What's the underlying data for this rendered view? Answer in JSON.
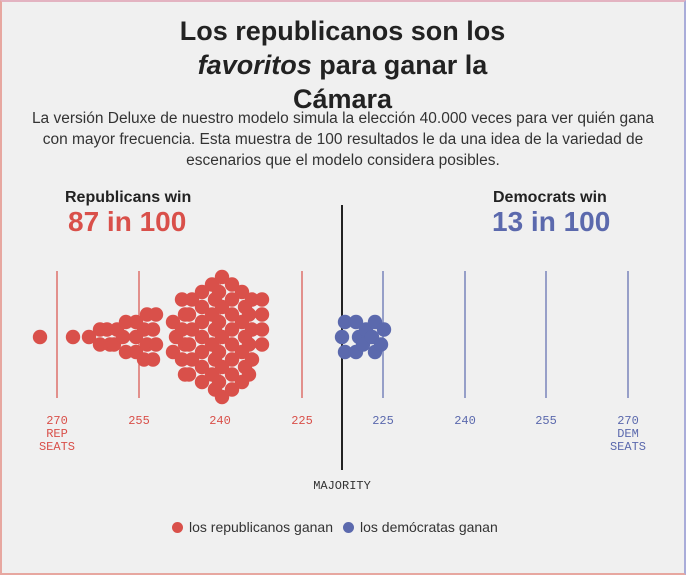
{
  "title": {
    "line1": "Los republicanos son los",
    "italic": "favoritos",
    "line2_rest": " para ganar la",
    "line3": "Cámara"
  },
  "subtitle": "La versión Deluxe de nuestro modelo simula la elección 40.000 veces para ver quién gana con mayor frecuencia. Esta muestra de 100 resultados le da una idea de la variedad de escenarios que el modelo considera posibles.",
  "republicans": {
    "label": "Republicans win",
    "value": "87 in 100",
    "color": "#d9504a"
  },
  "democrats": {
    "label": "Democrats win",
    "value": "13 in 100",
    "color": "#5b69ad"
  },
  "legend": {
    "rep": "los republicanos ganan",
    "dem": "los demócratas ganan"
  },
  "chart_data": {
    "type": "scatter",
    "description_axis": "Rep seats (left) to Dem seats (right)",
    "ticks": [
      {
        "label": "270",
        "sub": [
          "REP",
          "SEATS"
        ],
        "party": "rep"
      },
      {
        "label": "255",
        "party": "rep"
      },
      {
        "label": "240",
        "party": "rep"
      },
      {
        "label": "225",
        "party": "rep"
      },
      {
        "label": "225",
        "party": "dem"
      },
      {
        "label": "240",
        "party": "dem"
      },
      {
        "label": "255",
        "party": "dem"
      },
      {
        "label": "270",
        "sub": [
          "DEM",
          "SEATS"
        ],
        "party": "dem"
      }
    ],
    "majority_label": "MAJORITY",
    "rep_wins": 87,
    "dem_wins": 13,
    "total": 100
  }
}
